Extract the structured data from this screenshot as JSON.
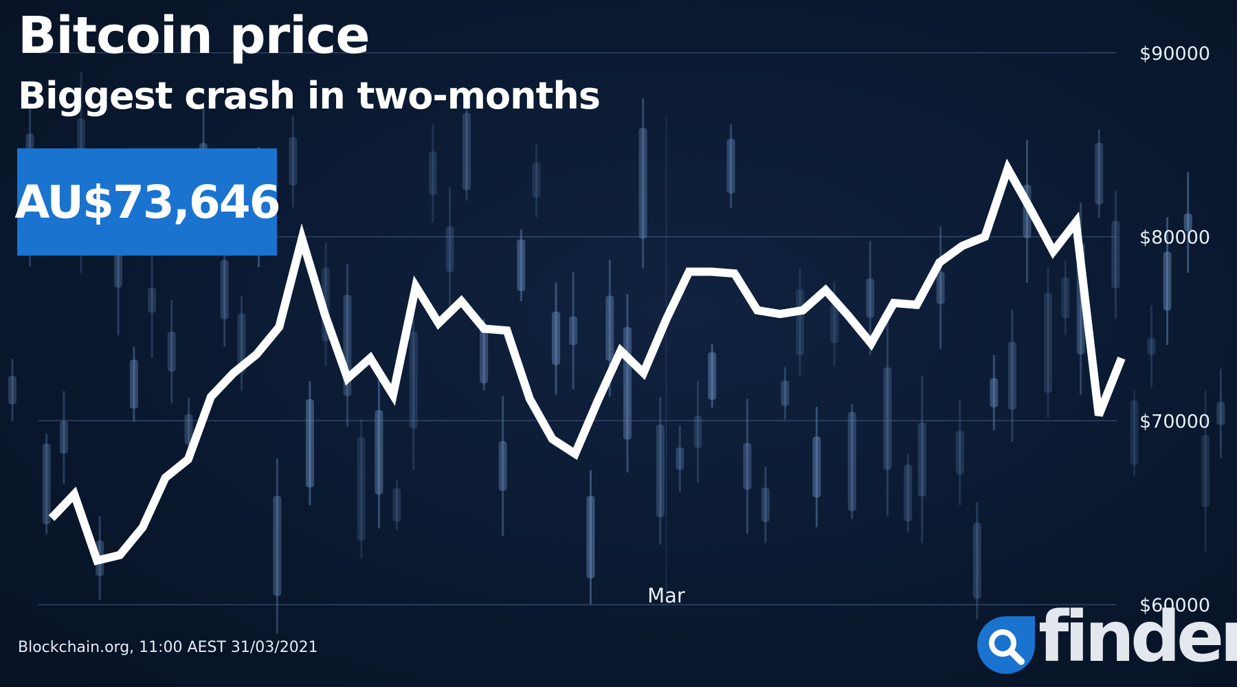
{
  "header": {
    "title": "Bitcoin price",
    "subtitle": "Biggest crash in two-months"
  },
  "current_price": "AU$73,646",
  "source": "Blockchain.org, 11:00 AEST 31/03/2021",
  "brand": {
    "name": "finder",
    "color": "#1a73cf",
    "icon": "magnifier-icon"
  },
  "colors": {
    "background": "#0a1930",
    "line": "#ffffff",
    "price_box": "#1a73cf"
  },
  "chart_data": {
    "type": "line",
    "title": "Bitcoin price",
    "subtitle": "Biggest crash in two-months",
    "xlabel": "",
    "ylabel": "",
    "x_tick_labels": [
      {
        "label": "Mar",
        "index": 27
      }
    ],
    "y_ticks": [
      60000,
      70000,
      80000,
      90000
    ],
    "y_tick_labels": [
      "$60000",
      "$70000",
      "$80000",
      "$90000"
    ],
    "ylim": [
      55900,
      91000
    ],
    "grid": true,
    "legend": "none",
    "y_axis_side": "right",
    "series": [
      {
        "values": [
          64700,
          66000,
          62400,
          62700,
          64200,
          66900,
          67900,
          71300,
          72600,
          73600,
          75100,
          79900,
          75800,
          72300,
          73400,
          71400,
          77300,
          75300,
          76500,
          75000,
          74900,
          71200,
          69000,
          68200,
          71100,
          73800,
          72600,
          75500,
          78100,
          78100,
          78000,
          76000,
          75800,
          76000,
          77100,
          75700,
          74200,
          76400,
          76300,
          78600,
          79500,
          80000,
          83700,
          81500,
          79200,
          80800,
          70300,
          73400
        ]
      }
    ]
  }
}
